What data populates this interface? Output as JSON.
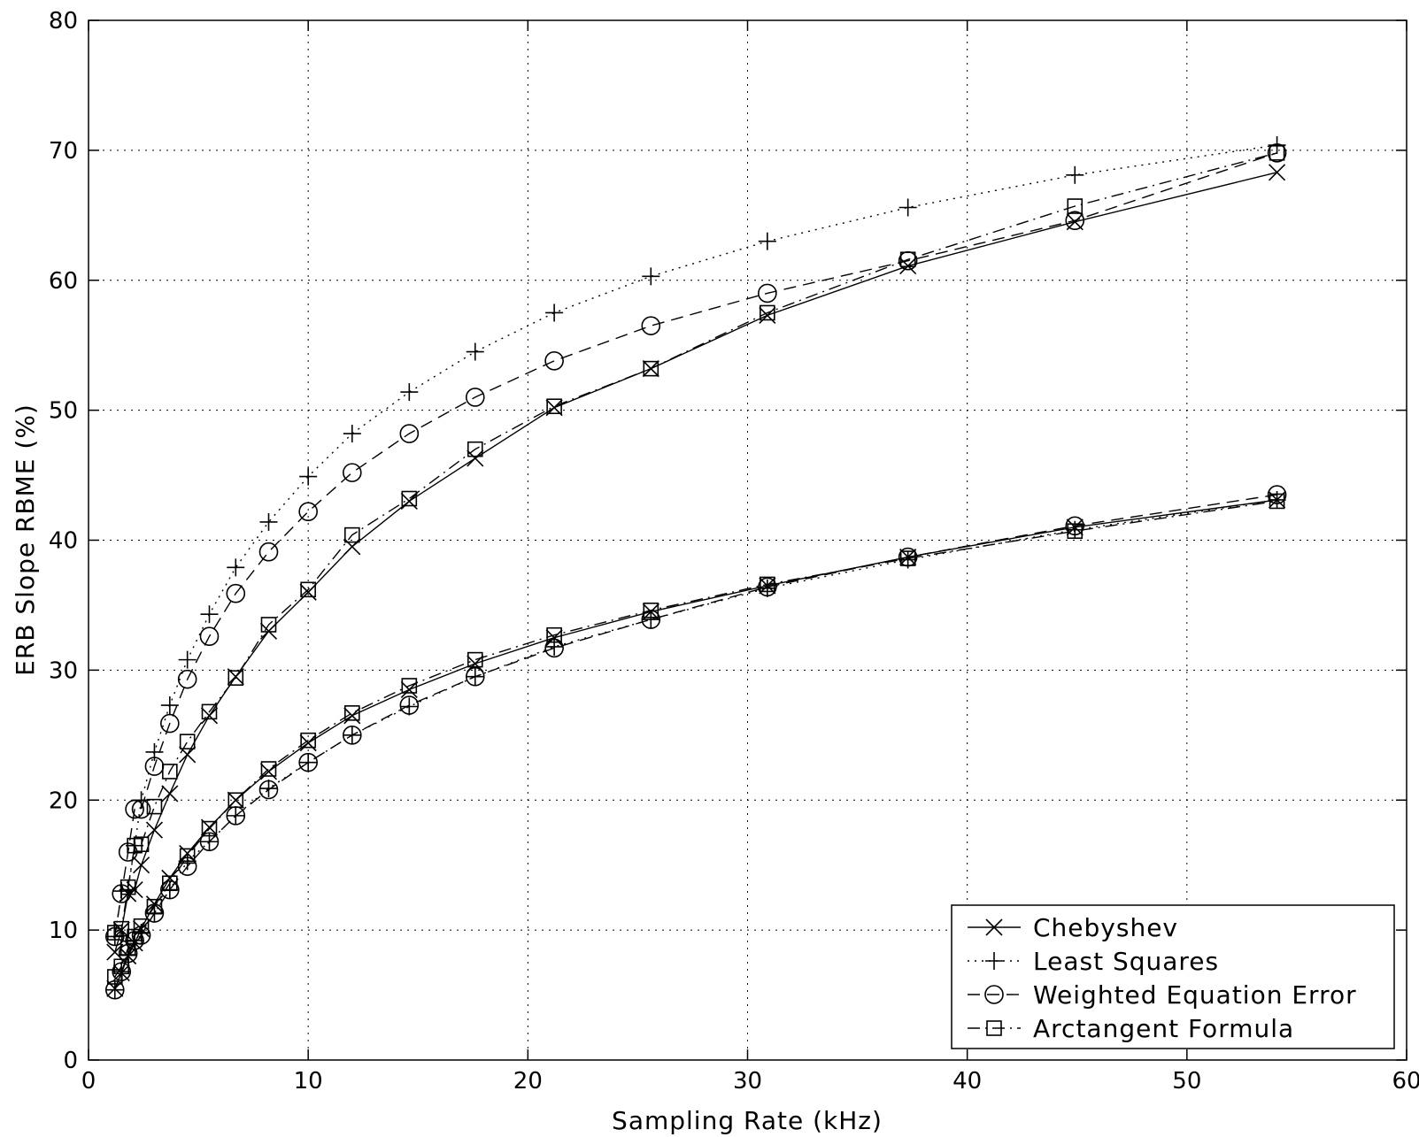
{
  "chart_data": {
    "type": "line",
    "title": "",
    "xlabel": "Sampling Rate (kHz)",
    "ylabel": "ERB Slope RBME (%)",
    "xlim": [
      0,
      60
    ],
    "ylim": [
      0,
      80
    ],
    "xticks": [
      0,
      10,
      20,
      30,
      40,
      50,
      60
    ],
    "yticks": [
      0,
      10,
      20,
      30,
      40,
      50,
      60,
      70,
      80
    ],
    "grid": true,
    "legend_position": "bottom-right",
    "x": [
      1.2,
      1.5,
      1.8,
      2.1,
      2.4,
      3.0,
      3.7,
      4.5,
      5.5,
      6.7,
      8.2,
      10.0,
      12.0,
      14.6,
      17.6,
      21.2,
      25.6,
      30.9,
      37.3,
      44.9,
      54.1
    ],
    "series": [
      {
        "name": "Chebyshev",
        "group": "upper",
        "marker": "x",
        "line": "solid",
        "values": [
          8.3,
          10.0,
          12.8,
          13.1,
          15.0,
          17.7,
          20.5,
          23.5,
          26.5,
          29.5,
          33.0,
          36.0,
          39.5,
          43.0,
          46.3,
          50.2,
          53.2,
          57.3,
          61.1,
          64.5,
          68.3
        ]
      },
      {
        "name": "Least Squares",
        "group": "upper",
        "marker": "+",
        "line": "dotted",
        "values": [
          9.5,
          13.0,
          13.1,
          16.5,
          20.0,
          23.7,
          27.3,
          30.8,
          34.3,
          37.9,
          41.4,
          44.9,
          48.2,
          51.4,
          54.5,
          57.5,
          60.3,
          63.0,
          65.6,
          68.1,
          70.4
        ]
      },
      {
        "name": "Weighted Equation Error",
        "group": "upper",
        "marker": "o",
        "line": "dashed",
        "values": [
          9.5,
          12.8,
          16.0,
          19.3,
          19.3,
          22.6,
          25.9,
          29.3,
          32.6,
          35.9,
          39.1,
          42.2,
          45.2,
          48.2,
          51.0,
          53.8,
          56.5,
          59.0,
          61.5,
          64.6,
          69.8
        ]
      },
      {
        "name": "Arctangent Formula",
        "group": "upper",
        "marker": "square",
        "line": "dash-dot",
        "values": [
          9.8,
          10.1,
          13.3,
          16.5,
          16.6,
          19.5,
          22.2,
          24.5,
          26.8,
          29.4,
          33.5,
          36.2,
          40.4,
          43.2,
          47.0,
          50.3,
          53.2,
          57.5,
          61.6,
          65.7,
          69.8
        ]
      },
      {
        "name": "Chebyshev",
        "group": "lower",
        "marker": "x",
        "line": "solid",
        "values": [
          5.5,
          6.7,
          8.0,
          9.0,
          10.1,
          12.0,
          14.0,
          15.9,
          17.9,
          20.0,
          22.2,
          24.4,
          26.5,
          28.5,
          30.5,
          32.5,
          34.5,
          36.5,
          38.7,
          41.0,
          43.1
        ]
      },
      {
        "name": "Least Squares",
        "group": "lower",
        "marker": "+",
        "line": "dotted",
        "values": [
          5.4,
          6.8,
          8.1,
          9.2,
          9.8,
          11.3,
          13.1,
          15.3,
          16.8,
          18.8,
          20.9,
          22.9,
          25.0,
          27.2,
          29.5,
          31.8,
          33.9,
          36.3,
          38.5,
          40.8,
          43.1
        ]
      },
      {
        "name": "Weighted Equation Error",
        "group": "lower",
        "marker": "o",
        "line": "dashed",
        "values": [
          5.4,
          6.8,
          8.2,
          9.2,
          9.6,
          11.3,
          13.1,
          14.9,
          16.8,
          18.8,
          20.8,
          22.9,
          25.0,
          27.3,
          29.5,
          31.7,
          33.9,
          36.4,
          38.7,
          41.1,
          43.5
        ]
      },
      {
        "name": "Arctangent Formula",
        "group": "lower",
        "marker": "square",
        "line": "dash-dot",
        "values": [
          6.4,
          7.2,
          8.6,
          9.5,
          10.3,
          11.8,
          13.6,
          15.7,
          17.8,
          20.0,
          22.4,
          24.6,
          26.7,
          28.8,
          30.8,
          32.7,
          34.6,
          36.6,
          38.6,
          40.7,
          43.0
        ]
      }
    ],
    "legend": [
      {
        "label": "Chebyshev",
        "marker": "x",
        "line": "solid"
      },
      {
        "label": "Least Squares",
        "marker": "+",
        "line": "dotted"
      },
      {
        "label": "Weighted Equation Error",
        "marker": "o",
        "line": "dashed"
      },
      {
        "label": "Arctangent Formula",
        "marker": "square",
        "line": "dash-dot"
      }
    ],
    "colors": {
      "ink": "#000000",
      "grid": "#000000",
      "background": "#ffffff"
    }
  }
}
